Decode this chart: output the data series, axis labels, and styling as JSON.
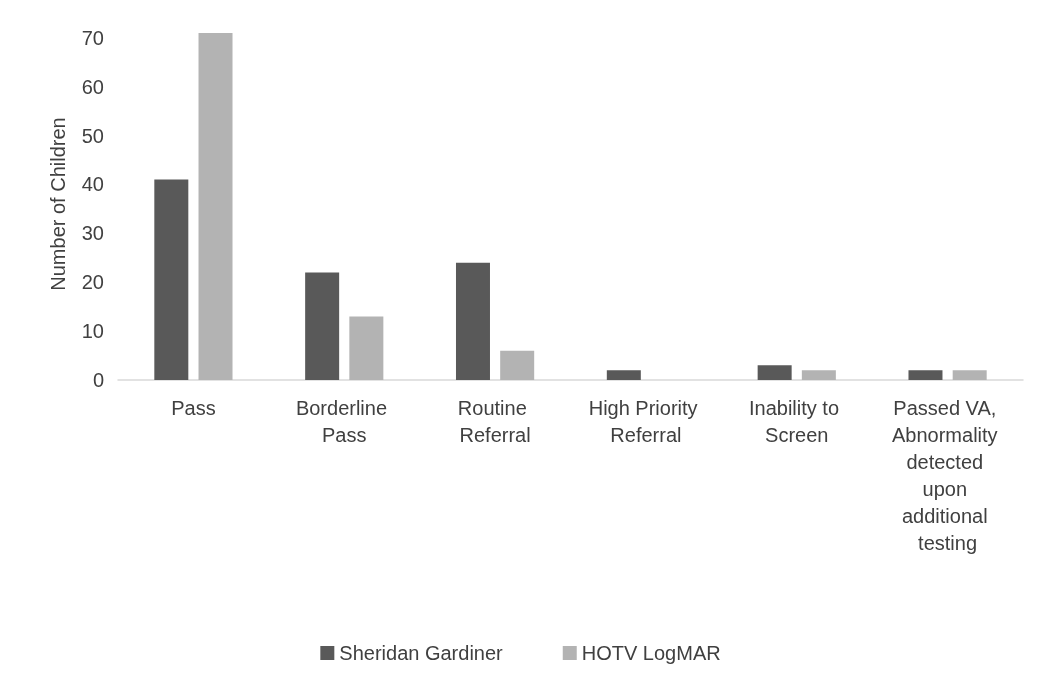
{
  "chart_data": {
    "type": "bar",
    "ylabel": "Number of Children",
    "categories": [
      "Pass",
      "Borderline Pass",
      "Routine Referral",
      "High Priority Referral",
      "Inability to Screen",
      "Passed VA, Abnormality detected upon additional testing"
    ],
    "series": [
      {
        "name": "Sheridan Gardiner",
        "color": "#595959",
        "values": [
          41,
          22,
          24,
          2,
          3,
          2
        ]
      },
      {
        "name": "HOTV LogMAR",
        "color": "#b3b3b3",
        "values": [
          71,
          13,
          6,
          0,
          2,
          2
        ]
      }
    ],
    "ylim": [
      0,
      72
    ],
    "yticks": [
      0,
      10,
      20,
      30,
      40,
      50,
      60,
      70
    ],
    "grid": false,
    "legend": "bottom"
  }
}
